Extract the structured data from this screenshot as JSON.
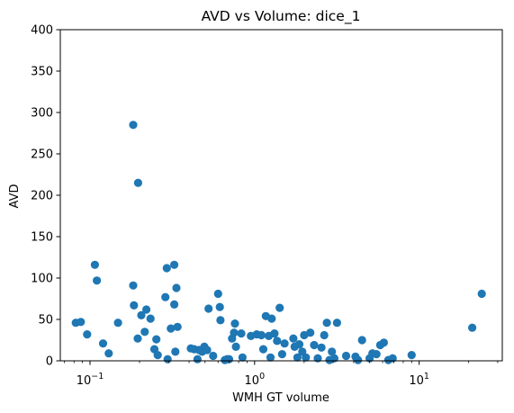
{
  "chart_data": {
    "type": "scatter",
    "title": "AVD vs Volume: dice_1",
    "xlabel": "WMH GT volume",
    "ylabel": "AVD",
    "xscale": "log",
    "xlim": [
      0.066,
      32
    ],
    "ylim": [
      0,
      400
    ],
    "grid": false,
    "x_ticks": [
      {
        "value": 0.1,
        "base": "10",
        "exp": "−1"
      },
      {
        "value": 1,
        "base": "10",
        "exp": "0"
      },
      {
        "value": 10,
        "base": "10",
        "exp": "1"
      }
    ],
    "y_ticks": [
      0,
      50,
      100,
      150,
      200,
      250,
      300,
      350,
      400
    ],
    "marker_color": "#1f77b4",
    "points": [
      {
        "x": 0.082,
        "y": 46
      },
      {
        "x": 0.088,
        "y": 47
      },
      {
        "x": 0.096,
        "y": 32
      },
      {
        "x": 0.107,
        "y": 116
      },
      {
        "x": 0.11,
        "y": 97
      },
      {
        "x": 0.12,
        "y": 21
      },
      {
        "x": 0.13,
        "y": 9
      },
      {
        "x": 0.148,
        "y": 46
      },
      {
        "x": 0.183,
        "y": 285
      },
      {
        "x": 0.183,
        "y": 91
      },
      {
        "x": 0.185,
        "y": 67
      },
      {
        "x": 0.195,
        "y": 27
      },
      {
        "x": 0.196,
        "y": 215
      },
      {
        "x": 0.205,
        "y": 55
      },
      {
        "x": 0.215,
        "y": 35
      },
      {
        "x": 0.22,
        "y": 62
      },
      {
        "x": 0.233,
        "y": 51
      },
      {
        "x": 0.246,
        "y": 14
      },
      {
        "x": 0.253,
        "y": 26
      },
      {
        "x": 0.258,
        "y": 7
      },
      {
        "x": 0.287,
        "y": 77
      },
      {
        "x": 0.293,
        "y": 112
      },
      {
        "x": 0.296,
        "y": 2
      },
      {
        "x": 0.31,
        "y": 39
      },
      {
        "x": 0.325,
        "y": 116
      },
      {
        "x": 0.325,
        "y": 68
      },
      {
        "x": 0.33,
        "y": 11
      },
      {
        "x": 0.335,
        "y": 88
      },
      {
        "x": 0.34,
        "y": 41
      },
      {
        "x": 0.41,
        "y": 15
      },
      {
        "x": 0.43,
        "y": 14
      },
      {
        "x": 0.45,
        "y": 2
      },
      {
        "x": 0.46,
        "y": 13
      },
      {
        "x": 0.48,
        "y": 11
      },
      {
        "x": 0.495,
        "y": 17
      },
      {
        "x": 0.515,
        "y": 13
      },
      {
        "x": 0.525,
        "y": 63
      },
      {
        "x": 0.56,
        "y": 6
      },
      {
        "x": 0.6,
        "y": 81
      },
      {
        "x": 0.615,
        "y": 65
      },
      {
        "x": 0.62,
        "y": 49
      },
      {
        "x": 0.66,
        "y": 1
      },
      {
        "x": 0.68,
        "y": 2
      },
      {
        "x": 0.7,
        "y": 2
      },
      {
        "x": 0.73,
        "y": 27
      },
      {
        "x": 0.75,
        "y": 34
      },
      {
        "x": 0.76,
        "y": 45
      },
      {
        "x": 0.77,
        "y": 17
      },
      {
        "x": 0.83,
        "y": 33
      },
      {
        "x": 0.845,
        "y": 4
      },
      {
        "x": 0.95,
        "y": 30
      },
      {
        "x": 1.03,
        "y": 32
      },
      {
        "x": 1.1,
        "y": 31
      },
      {
        "x": 1.13,
        "y": 14
      },
      {
        "x": 1.17,
        "y": 54
      },
      {
        "x": 1.22,
        "y": 30
      },
      {
        "x": 1.25,
        "y": 4
      },
      {
        "x": 1.27,
        "y": 51
      },
      {
        "x": 1.32,
        "y": 33
      },
      {
        "x": 1.37,
        "y": 24
      },
      {
        "x": 1.42,
        "y": 64
      },
      {
        "x": 1.47,
        "y": 8
      },
      {
        "x": 1.52,
        "y": 21
      },
      {
        "x": 1.72,
        "y": 27
      },
      {
        "x": 1.75,
        "y": 17
      },
      {
        "x": 1.82,
        "y": 4
      },
      {
        "x": 1.87,
        "y": 20
      },
      {
        "x": 1.95,
        "y": 11
      },
      {
        "x": 2.0,
        "y": 31
      },
      {
        "x": 2.05,
        "y": 4
      },
      {
        "x": 2.18,
        "y": 34
      },
      {
        "x": 2.3,
        "y": 19
      },
      {
        "x": 2.42,
        "y": 3
      },
      {
        "x": 2.55,
        "y": 16
      },
      {
        "x": 2.65,
        "y": 31
      },
      {
        "x": 2.75,
        "y": 46
      },
      {
        "x": 2.85,
        "y": 1
      },
      {
        "x": 2.95,
        "y": 11
      },
      {
        "x": 3.05,
        "y": 3
      },
      {
        "x": 3.17,
        "y": 46
      },
      {
        "x": 3.6,
        "y": 6
      },
      {
        "x": 4.1,
        "y": 5
      },
      {
        "x": 4.25,
        "y": 1
      },
      {
        "x": 4.5,
        "y": 25
      },
      {
        "x": 5.0,
        "y": 3
      },
      {
        "x": 5.2,
        "y": 9
      },
      {
        "x": 5.5,
        "y": 8
      },
      {
        "x": 5.8,
        "y": 19
      },
      {
        "x": 6.1,
        "y": 22
      },
      {
        "x": 6.5,
        "y": 1
      },
      {
        "x": 6.9,
        "y": 3
      },
      {
        "x": 9.0,
        "y": 7
      },
      {
        "x": 21.0,
        "y": 40
      },
      {
        "x": 24.0,
        "y": 81
      }
    ]
  }
}
